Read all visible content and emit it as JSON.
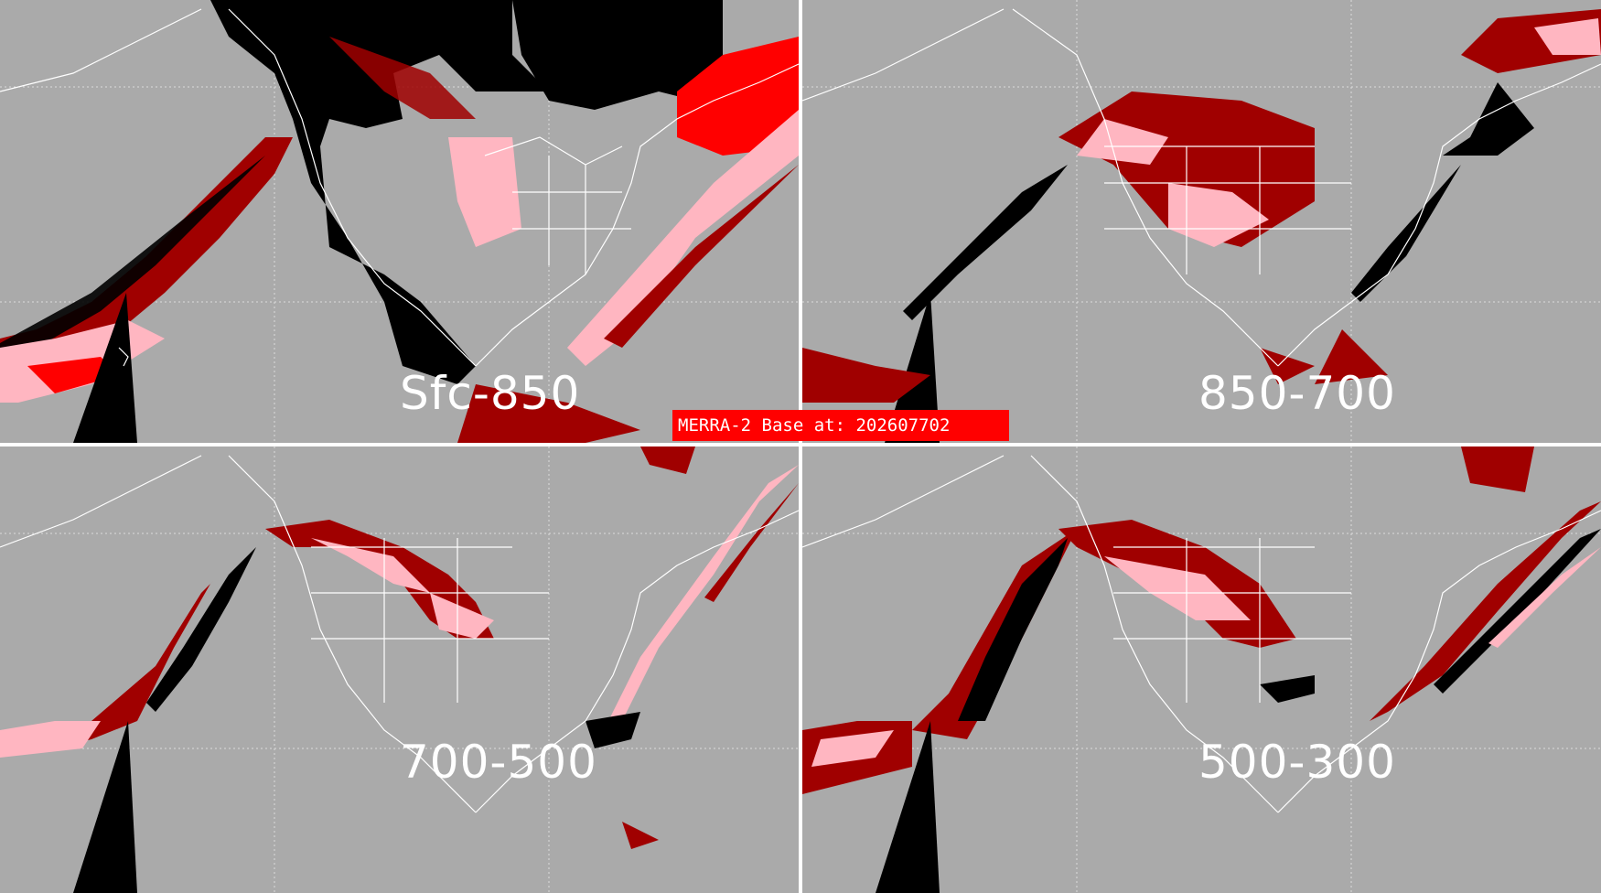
{
  "banner": {
    "text": "MERRA-2 Base at: 202607702"
  },
  "panels": [
    {
      "label": "Sfc-850"
    },
    {
      "label": "850-700"
    },
    {
      "label": "700-500"
    },
    {
      "label": "500-300"
    }
  ],
  "colors": {
    "background": "#aaaaaa",
    "black_category": "#000000",
    "dark_red_category": "#a00000",
    "red_category": "#ff0000",
    "pink_category": "#ffb6c1",
    "coastline": "#ffffff"
  }
}
